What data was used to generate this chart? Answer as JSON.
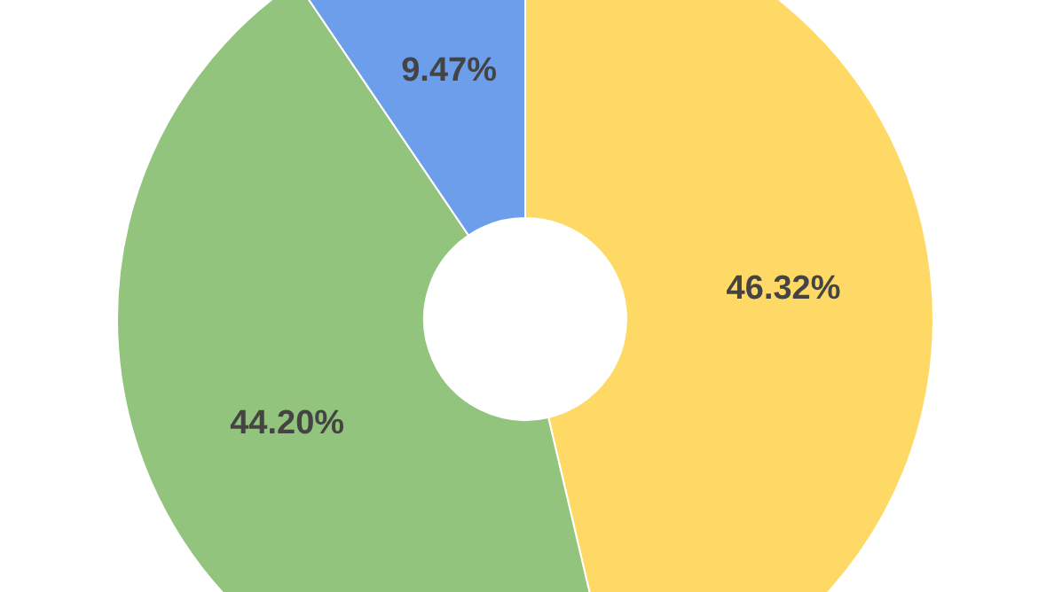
{
  "chart_data": {
    "type": "donut",
    "categories": [
      null,
      null,
      null
    ],
    "values": [
      46.32,
      44.2,
      9.47
    ],
    "colors": [
      "#fed966",
      "#93c47d",
      "#6d9eeb"
    ],
    "value_labels": [
      "46.32%",
      "44.20%",
      "9.47%"
    ]
  }
}
